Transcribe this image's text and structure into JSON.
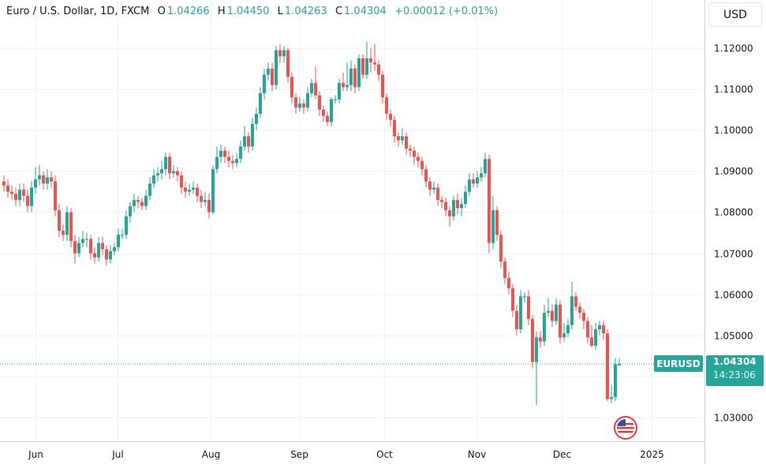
{
  "header": {
    "symbol": "Euro / U.S. Dollar, 1D, FXCM",
    "open_label": "O",
    "open": "1.04266",
    "high_label": "H",
    "high": "1.04450",
    "low_label": "L",
    "low": "1.04263",
    "close_label": "C",
    "close": "1.04304",
    "change": "+0.00012 (+0.01%)"
  },
  "currency_button": "USD",
  "last_price": {
    "symbol": "EURUSD",
    "price": "1.04304",
    "countdown": "14:23:06",
    "value": 1.04304
  },
  "colors": {
    "up": "#26a69a",
    "down": "#ef5350",
    "grid": "#f0f3fa",
    "text": "#131722"
  },
  "icons": {
    "country_flag": "us-eu-flag-icon"
  },
  "chart_data": {
    "type": "candlestick",
    "title": "Euro / U.S. Dollar, 1D, FXCM",
    "ylim": [
      1.025,
      1.1265
    ],
    "y_ticks": [
      "1.12000",
      "1.11000",
      "1.10000",
      "1.09000",
      "1.08000",
      "1.07000",
      "1.06000",
      "1.05000",
      "1.04000",
      "1.03000"
    ],
    "x_ticks": [
      {
        "label": "Jun",
        "index": 8
      },
      {
        "label": "Jul",
        "index": 28.8
      },
      {
        "label": "Aug",
        "index": 52.4
      },
      {
        "label": "Sep",
        "index": 74.8
      },
      {
        "label": "Oct",
        "index": 96.4
      },
      {
        "label": "Nov",
        "index": 119.8
      },
      {
        "label": "Dec",
        "index": 141.4
      },
      {
        "label": "2025",
        "index": 164.2
      }
    ],
    "grid": true,
    "candles_ohlc": [
      [
        1.0875,
        1.089,
        1.085,
        1.0865
      ],
      [
        1.0865,
        1.088,
        1.0835,
        1.085
      ],
      [
        1.085,
        1.0865,
        1.083,
        1.0845
      ],
      [
        1.0845,
        1.086,
        1.0815,
        1.083
      ],
      [
        1.083,
        1.087,
        1.0815,
        1.0855
      ],
      [
        1.0855,
        1.087,
        1.0825,
        1.084
      ],
      [
        1.084,
        1.0855,
        1.08,
        1.0815
      ],
      [
        1.0815,
        1.0875,
        1.08,
        1.086
      ],
      [
        1.086,
        1.091,
        1.0845,
        1.088
      ],
      [
        1.088,
        1.0915,
        1.0865,
        1.089
      ],
      [
        1.089,
        1.09,
        1.0855,
        1.087
      ],
      [
        1.087,
        1.0905,
        1.0855,
        1.0885
      ],
      [
        1.0885,
        1.09,
        1.086,
        1.0875
      ],
      [
        1.0875,
        1.089,
        1.079,
        1.0805
      ],
      [
        1.0805,
        1.082,
        1.074,
        1.0755
      ],
      [
        1.0755,
        1.077,
        1.073,
        1.0745
      ],
      [
        1.0745,
        1.0815,
        1.073,
        1.08
      ],
      [
        1.08,
        1.081,
        1.0715,
        1.073
      ],
      [
        1.073,
        1.0745,
        1.0675,
        1.07
      ],
      [
        1.07,
        1.074,
        1.069,
        1.0725
      ],
      [
        1.0725,
        1.0755,
        1.0715,
        1.0735
      ],
      [
        1.0735,
        1.075,
        1.0715,
        1.0735
      ],
      [
        1.0735,
        1.0745,
        1.0685,
        1.07
      ],
      [
        1.07,
        1.0715,
        1.0675,
        1.069
      ],
      [
        1.069,
        1.074,
        1.068,
        1.0725
      ],
      [
        1.0725,
        1.074,
        1.0695,
        1.071
      ],
      [
        1.071,
        1.072,
        1.067,
        1.0685
      ],
      [
        1.0685,
        1.072,
        1.0675,
        1.0705
      ],
      [
        1.0705,
        1.0725,
        1.0695,
        1.0715
      ],
      [
        1.0715,
        1.076,
        1.0705,
        1.0745
      ],
      [
        1.0745,
        1.076,
        1.0735,
        1.0745
      ],
      [
        1.0745,
        1.0805,
        1.0735,
        1.079
      ],
      [
        1.079,
        1.0825,
        1.0775,
        1.0815
      ],
      [
        1.0815,
        1.0845,
        1.08,
        1.083
      ],
      [
        1.083,
        1.084,
        1.081,
        1.0825
      ],
      [
        1.0825,
        1.0835,
        1.0805,
        1.0815
      ],
      [
        1.0815,
        1.0855,
        1.0805,
        1.084
      ],
      [
        1.084,
        1.0885,
        1.083,
        1.087
      ],
      [
        1.087,
        1.0905,
        1.086,
        1.089
      ],
      [
        1.089,
        1.091,
        1.0875,
        1.0895
      ],
      [
        1.0895,
        1.0925,
        1.088,
        1.0905
      ],
      [
        1.0905,
        1.0945,
        1.089,
        1.0935
      ],
      [
        1.0935,
        1.0945,
        1.088,
        1.0895
      ],
      [
        1.0895,
        1.0915,
        1.0885,
        1.09
      ],
      [
        1.09,
        1.091,
        1.0875,
        1.089
      ],
      [
        1.089,
        1.09,
        1.0845,
        1.086
      ],
      [
        1.086,
        1.0875,
        1.0835,
        1.085
      ],
      [
        1.085,
        1.087,
        1.084,
        1.0855
      ],
      [
        1.0855,
        1.0875,
        1.0845,
        1.086
      ],
      [
        1.086,
        1.087,
        1.0825,
        1.084
      ],
      [
        1.084,
        1.0855,
        1.081,
        1.0825
      ],
      [
        1.0825,
        1.085,
        1.0815,
        1.083
      ],
      [
        1.083,
        1.0845,
        1.0785,
        1.08
      ],
      [
        1.08,
        1.0915,
        1.0795,
        1.0905
      ],
      [
        1.0905,
        1.096,
        1.0895,
        1.0935
      ],
      [
        1.0935,
        1.0965,
        1.092,
        1.095
      ],
      [
        1.095,
        1.096,
        1.092,
        1.0935
      ],
      [
        1.0935,
        1.095,
        1.091,
        1.0925
      ],
      [
        1.0925,
        1.094,
        1.0905,
        1.092
      ],
      [
        1.092,
        1.0945,
        1.091,
        1.093
      ],
      [
        1.093,
        1.0975,
        1.092,
        1.096
      ],
      [
        1.096,
        1.101,
        1.095,
        1.0985
      ],
      [
        1.0985,
        1.0995,
        1.0945,
        1.096
      ],
      [
        1.096,
        1.103,
        1.095,
        1.1015
      ],
      [
        1.1015,
        1.1055,
        1.1,
        1.104
      ],
      [
        1.104,
        1.1105,
        1.103,
        1.109
      ],
      [
        1.109,
        1.115,
        1.1075,
        1.1135
      ],
      [
        1.1135,
        1.1165,
        1.112,
        1.115
      ],
      [
        1.115,
        1.1165,
        1.1095,
        1.111
      ],
      [
        1.111,
        1.1205,
        1.11,
        1.1195
      ],
      [
        1.1195,
        1.121,
        1.1165,
        1.118
      ],
      [
        1.118,
        1.1205,
        1.1165,
        1.1195
      ],
      [
        1.1195,
        1.12,
        1.1115,
        1.113
      ],
      [
        1.113,
        1.114,
        1.1065,
        1.108
      ],
      [
        1.108,
        1.109,
        1.104,
        1.1055
      ],
      [
        1.1055,
        1.108,
        1.1045,
        1.1065
      ],
      [
        1.1065,
        1.1075,
        1.104,
        1.1055
      ],
      [
        1.1055,
        1.1105,
        1.1045,
        1.109
      ],
      [
        1.109,
        1.1125,
        1.108,
        1.1115
      ],
      [
        1.1115,
        1.1155,
        1.1075,
        1.1085
      ],
      [
        1.1085,
        1.1095,
        1.1035,
        1.105
      ],
      [
        1.105,
        1.106,
        1.102,
        1.1035
      ],
      [
        1.1035,
        1.1045,
        1.101,
        1.102
      ],
      [
        1.102,
        1.108,
        1.101,
        1.1075
      ],
      [
        1.1075,
        1.1085,
        1.1065,
        1.1075
      ],
      [
        1.1075,
        1.1125,
        1.1065,
        1.1115
      ],
      [
        1.1115,
        1.114,
        1.1095,
        1.1105
      ],
      [
        1.1105,
        1.1165,
        1.1095,
        1.111
      ],
      [
        1.111,
        1.117,
        1.1095,
        1.115
      ],
      [
        1.115,
        1.116,
        1.109,
        1.1105
      ],
      [
        1.1105,
        1.1185,
        1.1095,
        1.1175
      ],
      [
        1.1175,
        1.1185,
        1.1125,
        1.1135
      ],
      [
        1.1135,
        1.1215,
        1.1125,
        1.1175
      ],
      [
        1.1175,
        1.12,
        1.114,
        1.1165
      ],
      [
        1.1165,
        1.121,
        1.1145,
        1.116
      ],
      [
        1.116,
        1.117,
        1.112,
        1.1135
      ],
      [
        1.1135,
        1.1145,
        1.1065,
        1.108
      ],
      [
        1.108,
        1.109,
        1.1025,
        1.104
      ],
      [
        1.104,
        1.105,
        1.101,
        1.1025
      ],
      [
        1.1025,
        1.1035,
        1.097,
        1.0985
      ],
      [
        1.0985,
        1.0995,
        1.096,
        1.0975
      ],
      [
        1.0975,
        1.1005,
        1.0965,
        1.0985
      ],
      [
        1.0985,
        1.0995,
        1.094,
        1.0955
      ],
      [
        1.0955,
        1.0965,
        1.0935,
        1.095
      ],
      [
        1.095,
        1.096,
        1.0915,
        1.0935
      ],
      [
        1.0935,
        1.0945,
        1.091,
        1.0925
      ],
      [
        1.0925,
        1.0935,
        1.089,
        1.0905
      ],
      [
        1.0905,
        1.0915,
        1.086,
        1.0875
      ],
      [
        1.0875,
        1.0885,
        1.084,
        1.0855
      ],
      [
        1.0855,
        1.0875,
        1.0845,
        1.086
      ],
      [
        1.086,
        1.087,
        1.0815,
        1.083
      ],
      [
        1.083,
        1.084,
        1.081,
        1.0825
      ],
      [
        1.0825,
        1.0835,
        1.079,
        1.0805
      ],
      [
        1.0805,
        1.0815,
        1.0765,
        1.079
      ],
      [
        1.079,
        1.084,
        1.078,
        1.083
      ],
      [
        1.083,
        1.0845,
        1.0795,
        1.081
      ],
      [
        1.081,
        1.0835,
        1.079,
        1.082
      ],
      [
        1.082,
        1.0865,
        1.081,
        1.085
      ],
      [
        1.085,
        1.0895,
        1.084,
        1.088
      ],
      [
        1.088,
        1.0895,
        1.086,
        1.087
      ],
      [
        1.087,
        1.09,
        1.086,
        1.0885
      ],
      [
        1.0885,
        1.091,
        1.0875,
        1.0895
      ],
      [
        1.0895,
        1.0945,
        1.0885,
        1.093
      ],
      [
        1.093,
        1.094,
        1.07,
        1.0725
      ],
      [
        1.0725,
        1.084,
        1.071,
        1.0805
      ],
      [
        1.0805,
        1.0815,
        1.073,
        1.0745
      ],
      [
        1.0745,
        1.0755,
        1.0665,
        1.068
      ],
      [
        1.068,
        1.069,
        1.0625,
        1.064
      ],
      [
        1.064,
        1.0655,
        1.06,
        1.0615
      ],
      [
        1.0615,
        1.0625,
        1.0545,
        1.056
      ],
      [
        1.056,
        1.0575,
        1.05,
        1.0515
      ],
      [
        1.0515,
        1.061,
        1.0505,
        1.0595
      ],
      [
        1.0595,
        1.0605,
        1.058,
        1.0595
      ],
      [
        1.0595,
        1.061,
        1.0525,
        1.054
      ],
      [
        1.054,
        1.055,
        1.042,
        1.0435
      ],
      [
        1.0435,
        1.051,
        1.033,
        1.0495
      ],
      [
        1.0495,
        1.051,
        1.047,
        1.0485
      ],
      [
        1.0485,
        1.0575,
        1.0475,
        1.0555
      ],
      [
        1.0555,
        1.059,
        1.0545,
        1.056
      ],
      [
        1.056,
        1.0575,
        1.052,
        1.0535
      ],
      [
        1.0535,
        1.059,
        1.0525,
        1.0575
      ],
      [
        1.0575,
        1.0585,
        1.048,
        1.0495
      ],
      [
        1.0495,
        1.053,
        1.0485,
        1.0505
      ],
      [
        1.0505,
        1.054,
        1.0495,
        1.0525
      ],
      [
        1.0525,
        1.063,
        1.0515,
        1.0595
      ],
      [
        1.0595,
        1.0605,
        1.056,
        1.057
      ],
      [
        1.057,
        1.058,
        1.054,
        1.0555
      ],
      [
        1.0555,
        1.0565,
        1.0515,
        1.0535
      ],
      [
        1.0535,
        1.0545,
        1.048,
        1.0495
      ],
      [
        1.0495,
        1.0525,
        1.047,
        1.0475
      ],
      [
        1.0475,
        1.053,
        1.0465,
        1.0515
      ],
      [
        1.0515,
        1.0535,
        1.05,
        1.0525
      ],
      [
        1.0525,
        1.0535,
        1.049,
        1.0505
      ],
      [
        1.0505,
        1.0515,
        1.034,
        1.0345
      ],
      [
        1.0345,
        1.038,
        1.0335,
        1.035
      ],
      [
        1.035,
        1.0445,
        1.034,
        1.043
      ],
      [
        1.04266,
        1.0445,
        1.04263,
        1.04304
      ]
    ]
  }
}
